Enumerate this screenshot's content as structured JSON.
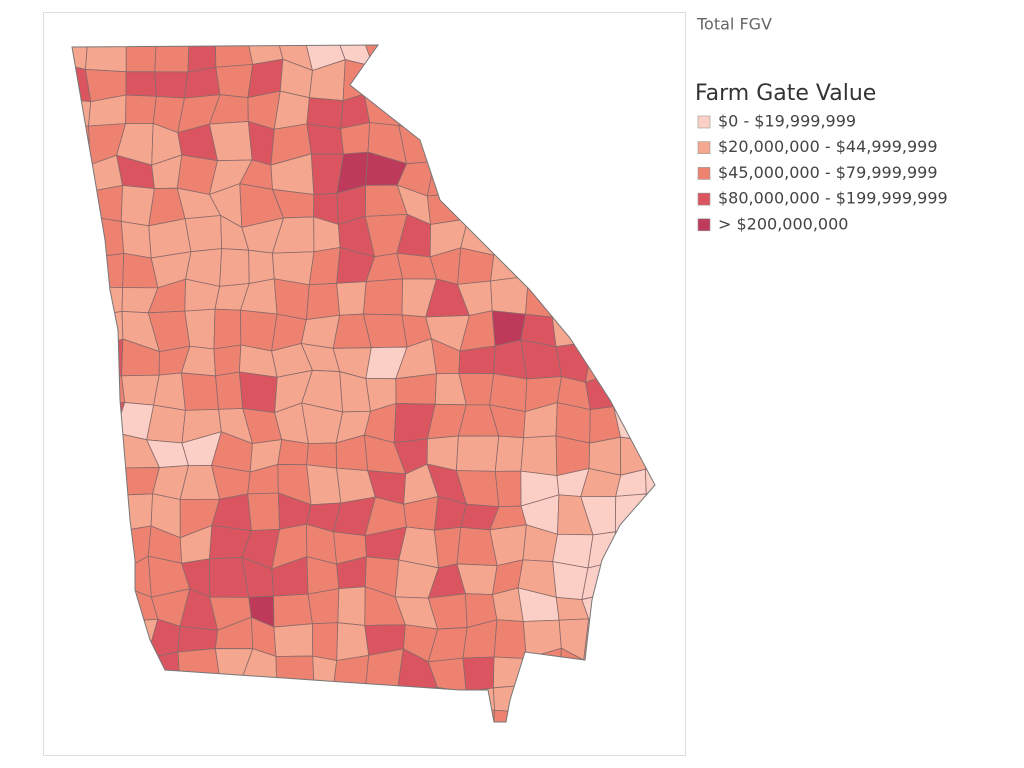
{
  "header": {
    "title": "Total FGV"
  },
  "legend": {
    "title": "Farm Gate Value",
    "items": [
      {
        "label": "$0 - $19,999,999",
        "color": "#fbcfc6"
      },
      {
        "label": "$20,000,000 - $44,999,999",
        "color": "#f5a68e"
      },
      {
        "label": "$45,000,000 - $79,999,999",
        "color": "#ee8270"
      },
      {
        "label": "$80,000,000 - $199,999,999",
        "color": "#db5561"
      },
      {
        "label": "> $200,000,000",
        "color": "#bd3a5a"
      }
    ]
  }
}
